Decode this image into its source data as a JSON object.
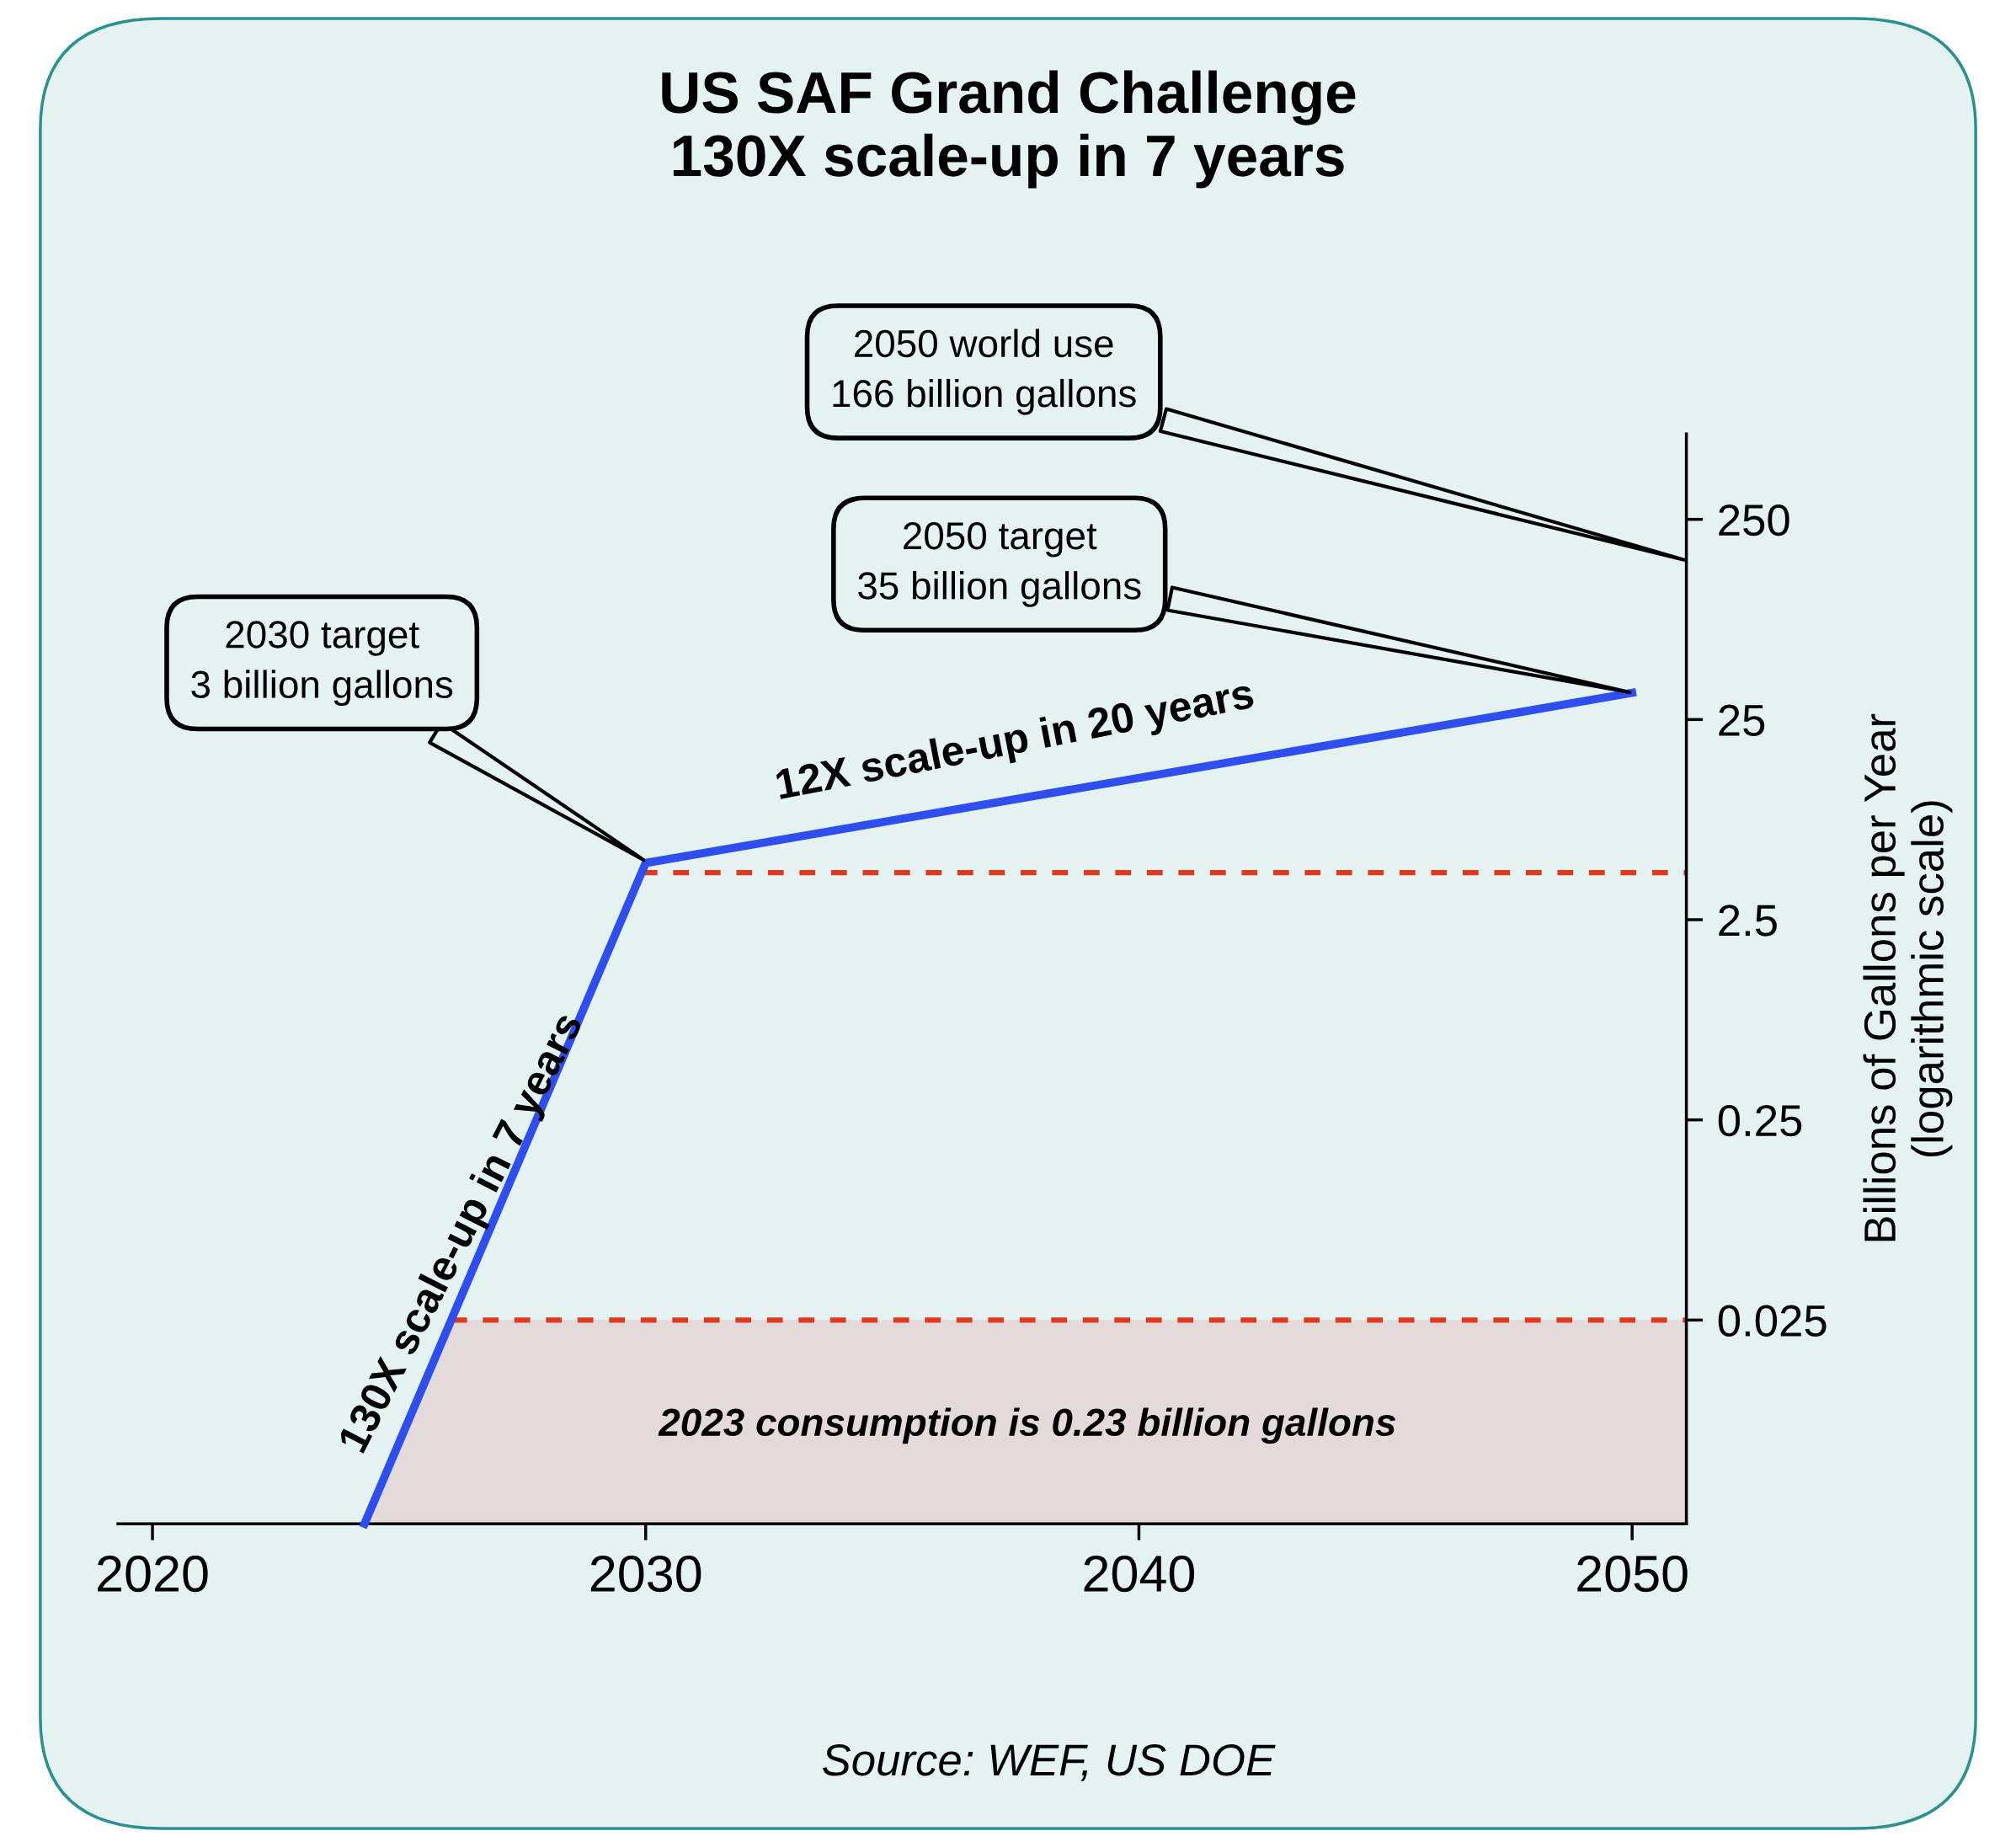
{
  "chart_data": {
    "type": "line",
    "title": "US SAF Grand Challenge\n130X scale-up in 7 years",
    "ylabel": "Billions of Gallons per Year\n(logarithmic scale)",
    "x": [
      2024.3,
      2030,
      2050
    ],
    "series": [
      {
        "color": "#2f4ef0",
        "values": [
          0.0024,
          4.8,
          34
        ]
      }
    ],
    "log": "y",
    "xlim": [
      2019.3,
      2051.1
    ],
    "ylim": [
      0.0024,
      667
    ],
    "xticks": [
      2020,
      2030,
      2040,
      2050
    ],
    "yticks": [
      0.025,
      0.25,
      2.5,
      25,
      250
    ],
    "grid": false,
    "marker": "none",
    "line_style": "solid",
    "ref_lines": [
      {
        "axis": "y",
        "value": 4.3,
        "label": null,
        "color": "#e03a1e",
        "line_style": "dashed"
      },
      {
        "axis": "y",
        "value": 0.025,
        "label": null,
        "color": "#e03a1e",
        "line_style": "dashed"
      }
    ],
    "bands": [
      {
        "axis": "y",
        "from": 0.0024,
        "to": 0.025,
        "label": "2023 consumption is 0.23 billion gallons",
        "color": "#e4dadc"
      }
    ],
    "annotations": [
      "2030 target\n3 billion gallons",
      {
        "text": "2050 target\n35 billion gallons",
        "x": 2050,
        "y": 34
      },
      "2050 world use\n166 billion gallons",
      "12X scale-up in 20 years",
      "130X scale-up in 7 years",
      "Source: WEF, US DOE"
    ]
  }
}
